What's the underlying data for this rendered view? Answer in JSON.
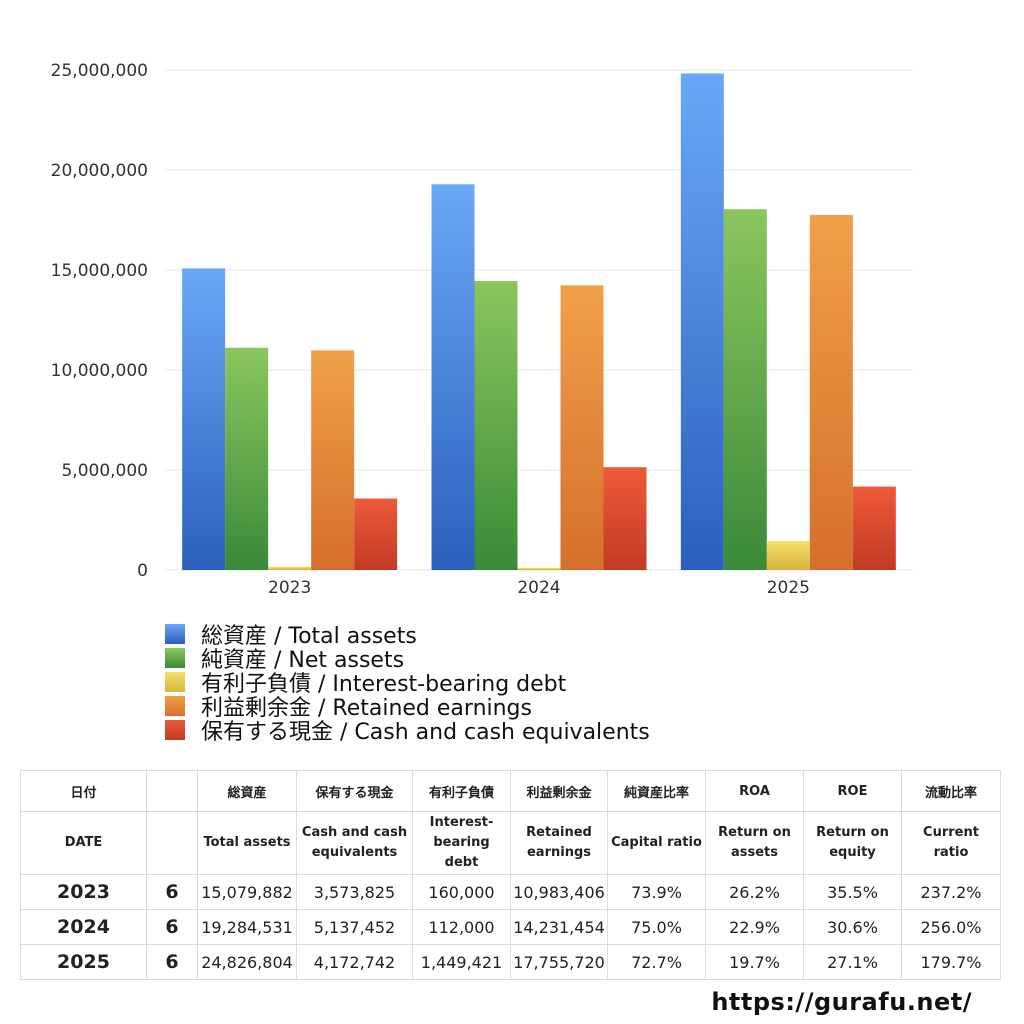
{
  "chart_data": {
    "type": "bar",
    "categories": [
      "2023",
      "2024",
      "2025"
    ],
    "ylim": [
      0,
      25000000
    ],
    "yticks": [
      "0",
      "5,000,000",
      "10,000,000",
      "15,000,000",
      "20,000,000",
      "25,000,000"
    ],
    "ytick_values": [
      0,
      5000000,
      10000000,
      15000000,
      20000000,
      25000000
    ],
    "grid": true,
    "legend_position": "bottom-left",
    "series": [
      {
        "name": "総資産 / Total assets",
        "values": [
          15079882,
          19284531,
          24826804
        ],
        "color_top": "#6aa8f7",
        "color_bottom": "#2c5fbd"
      },
      {
        "name": "純資産 / Net assets",
        "values": [
          11115000,
          14450000,
          18040000
        ],
        "color_top": "#8cc65e",
        "color_bottom": "#3a8a39"
      },
      {
        "name": "有利子負債 / Interest-bearing debt",
        "values": [
          160000,
          112000,
          1449421
        ],
        "color_top": "#f4e16a",
        "color_bottom": "#d9b33a"
      },
      {
        "name": "利益剰余金 / Retained earnings",
        "values": [
          10983406,
          14231454,
          17755720
        ],
        "color_top": "#f0a04a",
        "color_bottom": "#d56f2c"
      },
      {
        "name": "保有する現金 /  Cash and cash equivalents",
        "values": [
          3573825,
          5137452,
          4172742
        ],
        "color_top": "#ee5a3a",
        "color_bottom": "#c23a24"
      }
    ]
  },
  "table": {
    "header_jp": [
      "日付",
      "",
      "総資産",
      "保有する現金",
      "有利子負債",
      "利益剰余金",
      "純資産比率",
      "ROA",
      "ROE",
      "流動比率"
    ],
    "header_en": [
      [
        "DATE"
      ],
      [
        ""
      ],
      [
        "Total assets"
      ],
      [
        "Cash and cash",
        "equivalents"
      ],
      [
        "Interest-",
        "bearing",
        "debt"
      ],
      [
        "Retained",
        "earnings"
      ],
      [
        "Capital ratio"
      ],
      [
        "Return on",
        "assets"
      ],
      [
        "Return on",
        "equity"
      ],
      [
        "Current",
        "ratio"
      ]
    ],
    "rows": [
      [
        "2023",
        "6",
        "15,079,882",
        "3,573,825",
        "160,000",
        "10,983,406",
        "73.9%",
        "26.2%",
        "35.5%",
        "237.2%"
      ],
      [
        "2024",
        "6",
        "19,284,531",
        "5,137,452",
        "112,000",
        "14,231,454",
        "75.0%",
        "22.9%",
        "30.6%",
        "256.0%"
      ],
      [
        "2025",
        "6",
        "24,826,804",
        "4,172,742",
        "1,449,421",
        "17,755,720",
        "72.7%",
        "19.7%",
        "27.1%",
        "179.7%"
      ]
    ]
  },
  "footer": {
    "url": "https://gurafu.net/"
  }
}
